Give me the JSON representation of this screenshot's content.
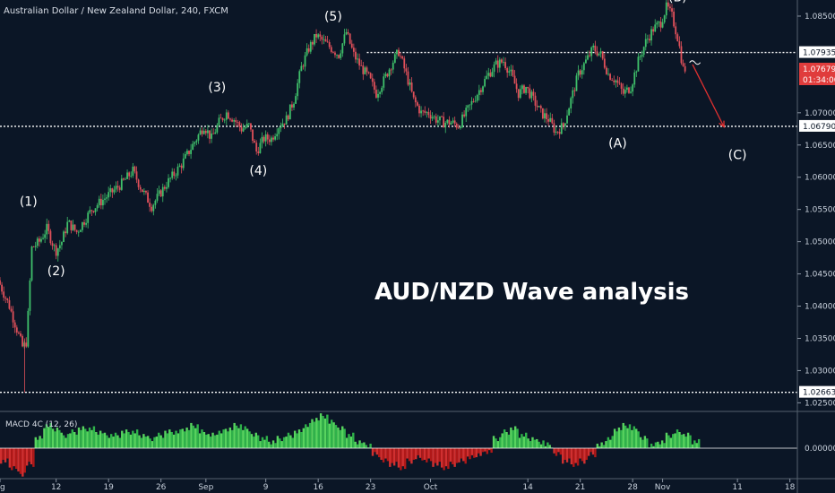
{
  "chart_data": {
    "type": "candlestick",
    "title": "Australian Dollar / New Zealand Dollar, 240, FXCM",
    "overlay_title": "AUD/NZD Wave analysis",
    "ylim": [
      1.0238,
      1.0875
    ],
    "y_ticks": [
      "1.08500",
      "1.07000",
      "1.06500",
      "1.06000",
      "1.05500",
      "1.05000",
      "1.04500",
      "1.04000",
      "1.03500",
      "1.03000",
      "1.02500"
    ],
    "y_tick_values": [
      1.085,
      1.07,
      1.065,
      1.06,
      1.055,
      1.05,
      1.045,
      1.04,
      1.035,
      1.03,
      1.025
    ],
    "x_ticks": [
      {
        "label": "ug",
        "day": 4.5
      },
      {
        "label": "12",
        "day": 12
      },
      {
        "label": "19",
        "day": 19
      },
      {
        "label": "26",
        "day": 26
      },
      {
        "label": "Sep",
        "day": 32
      },
      {
        "label": "9",
        "day": 40
      },
      {
        "label": "16",
        "day": 47
      },
      {
        "label": "23",
        "day": 54
      },
      {
        "label": "Oct",
        "day": 62
      },
      {
        "label": "14",
        "day": 75
      },
      {
        "label": "21",
        "day": 82
      },
      {
        "label": "28",
        "day": 89
      },
      {
        "label": "Nov",
        "day": 93
      },
      {
        "label": "11",
        "day": 103
      },
      {
        "label": "18",
        "day": 110
      }
    ],
    "xlim": [
      4.5,
      111
    ],
    "levels": [
      {
        "value": 1.07935,
        "label": "1.07935",
        "from_day": 53.5,
        "to_day": 111
      },
      {
        "value": 1.0679,
        "label": "1.06790",
        "from_day": 4.5,
        "to_day": 111
      },
      {
        "value": 1.02663,
        "label": "1.02663",
        "from_day": 4.5,
        "to_day": 111
      }
    ],
    "current_price": {
      "value": "1.07679",
      "countdown": "01:34:00",
      "numeric": 1.07679
    },
    "price_path": [
      [
        4.5,
        1.044
      ],
      [
        6,
        1.04
      ],
      [
        7.8,
        1.0335
      ],
      [
        8.3,
        1.0345
      ],
      [
        9,
        1.049
      ],
      [
        10,
        1.05
      ],
      [
        11,
        1.052
      ],
      [
        12.2,
        1.0485
      ],
      [
        13,
        1.05
      ],
      [
        13.8,
        1.053
      ],
      [
        15,
        1.0515
      ],
      [
        17,
        1.055
      ],
      [
        19,
        1.057
      ],
      [
        21,
        1.059
      ],
      [
        22.5,
        1.061
      ],
      [
        23.5,
        1.0585
      ],
      [
        25,
        1.0555
      ],
      [
        27,
        1.059
      ],
      [
        29,
        1.062
      ],
      [
        31,
        1.066
      ],
      [
        32,
        1.068
      ],
      [
        33,
        1.066
      ],
      [
        34,
        1.0685
      ],
      [
        35,
        1.07
      ],
      [
        36,
        1.069
      ],
      [
        37,
        1.0675
      ],
      [
        38,
        1.068
      ],
      [
        39,
        1.064
      ],
      [
        40,
        1.066
      ],
      [
        41,
        1.066
      ],
      [
        42,
        1.068
      ],
      [
        43,
        1.069
      ],
      [
        44,
        1.072
      ],
      [
        45,
        1.077
      ],
      [
        46,
        1.08
      ],
      [
        47,
        1.082
      ],
      [
        48,
        1.081
      ],
      [
        49,
        1.08
      ],
      [
        50,
        1.079
      ],
      [
        51,
        1.0825
      ],
      [
        52,
        1.079
      ],
      [
        53,
        1.077
      ],
      [
        54,
        1.0755
      ],
      [
        55,
        1.073
      ],
      [
        56,
        1.075
      ],
      [
        57,
        1.0775
      ],
      [
        58,
        1.0795
      ],
      [
        59,
        1.076
      ],
      [
        60,
        1.072
      ],
      [
        61,
        1.07
      ],
      [
        62,
        1.07
      ],
      [
        63,
        1.069
      ],
      [
        64,
        1.0685
      ],
      [
        65,
        1.0685
      ],
      [
        66,
        1.068
      ],
      [
        67,
        1.07
      ],
      [
        68,
        1.072
      ],
      [
        69,
        1.074
      ],
      [
        70,
        1.076
      ],
      [
        71,
        1.0775
      ],
      [
        72,
        1.078
      ],
      [
        73,
        1.076
      ],
      [
        74,
        1.073
      ],
      [
        75,
        1.074
      ],
      [
        76,
        1.072
      ],
      [
        77,
        1.07
      ],
      [
        78,
        1.069
      ],
      [
        79,
        1.067
      ],
      [
        80,
        1.068
      ],
      [
        81,
        1.072
      ],
      [
        82,
        1.076
      ],
      [
        83,
        1.078
      ],
      [
        84,
        1.08
      ],
      [
        85,
        1.079
      ],
      [
        86,
        1.076
      ],
      [
        87,
        1.075
      ],
      [
        88,
        1.073
      ],
      [
        89,
        1.074
      ],
      [
        90,
        1.078
      ],
      [
        91,
        1.081
      ],
      [
        92,
        1.083
      ],
      [
        93,
        1.084
      ],
      [
        93.8,
        1.0865
      ],
      [
        94.5,
        1.085
      ],
      [
        95.3,
        1.0815
      ],
      [
        96,
        1.0768
      ]
    ],
    "forecast_arrow": {
      "from": [
        97,
        1.0775
      ],
      "to": [
        101.2,
        1.0678
      ]
    },
    "wave_labels": [
      {
        "text": "(1)",
        "day": 8.3,
        "price": 1.0556
      },
      {
        "text": "(2)",
        "day": 12,
        "price": 1.0448
      },
      {
        "text": "(3)",
        "day": 33.5,
        "price": 1.0733
      },
      {
        "text": "(4)",
        "day": 39,
        "price": 1.0604
      },
      {
        "text": "(5)",
        "day": 49,
        "price": 1.0843
      },
      {
        "text": "(A)",
        "day": 87,
        "price": 1.0646
      },
      {
        "text": "(B)",
        "day": 95,
        "price": 1.0873
      },
      {
        "text": "(C)",
        "day": 103,
        "price": 1.0628
      }
    ],
    "macd": {
      "label": "MACD 4C (12, 26)",
      "y_tick": "0.00000",
      "values": [
        -0.4,
        -0.6,
        -0.8,
        -0.5,
        0.3,
        0.7,
        0.6,
        0.4,
        0.5,
        0.6,
        0.6,
        0.5,
        0.4,
        0.4,
        0.5,
        0.5,
        0.4,
        0.3,
        0.4,
        0.5,
        0.5,
        0.6,
        0.7,
        0.5,
        0.4,
        0.5,
        0.6,
        0.7,
        0.6,
        0.4,
        0.3,
        0.2,
        0.3,
        0.4,
        0.5,
        0.7,
        0.9,
        1.0,
        0.8,
        0.6,
        0.4,
        0.2,
        0.1,
        -0.2,
        -0.4,
        -0.5,
        -0.6,
        -0.4,
        -0.3,
        -0.4,
        -0.5,
        -0.6,
        -0.5,
        -0.4,
        -0.3,
        -0.2,
        -0.1,
        0.3,
        0.5,
        0.6,
        0.4,
        0.3,
        0.2,
        0.1,
        -0.2,
        -0.4,
        -0.5,
        -0.4,
        -0.2,
        0.1,
        0.3,
        0.6,
        0.7,
        0.6,
        0.3,
        0.1,
        0.2,
        0.4,
        0.5,
        0.4,
        0.2
      ]
    }
  }
}
